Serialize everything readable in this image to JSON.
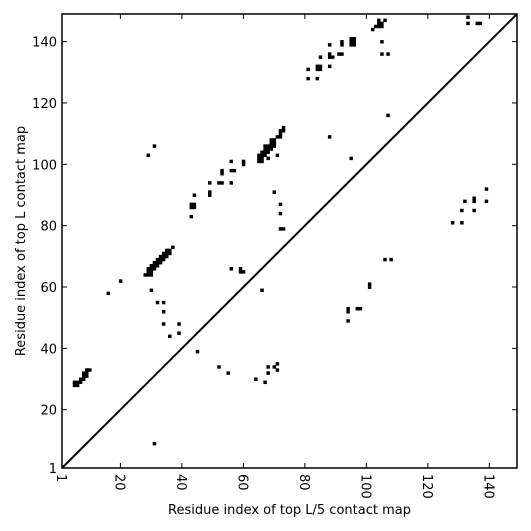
{
  "chart_data": {
    "type": "scatter",
    "title": "",
    "xlabel": "Residue index of top L/5 contact map",
    "ylabel": "Residue index of top L contact map",
    "xlim": [
      1,
      149
    ],
    "ylim": [
      1,
      149
    ],
    "xticks": [
      "1",
      "20",
      "40",
      "60",
      "80",
      "100",
      "120",
      "140"
    ],
    "xtick_values": [
      1,
      20,
      40,
      60,
      80,
      100,
      120,
      140
    ],
    "yticks": [
      "1",
      "20",
      "40",
      "60",
      "80",
      "100",
      "120",
      "140"
    ],
    "ytick_values": [
      1,
      20,
      40,
      60,
      80,
      100,
      120,
      140
    ],
    "grid": false,
    "diagonal_line": true,
    "marker_color": "#000000",
    "series": [
      {
        "values_xy": [
          [
            5,
            28
          ],
          [
            6,
            28
          ],
          [
            5,
            29
          ],
          [
            6,
            29
          ],
          [
            7,
            29
          ],
          [
            7,
            30
          ],
          [
            8,
            30
          ],
          [
            8,
            31
          ],
          [
            9,
            31
          ],
          [
            8,
            32
          ],
          [
            9,
            32
          ],
          [
            9,
            33
          ],
          [
            10,
            33
          ],
          [
            16,
            58
          ],
          [
            20,
            62
          ],
          [
            29,
            103
          ],
          [
            31,
            106
          ],
          [
            31,
            9
          ],
          [
            28,
            64
          ],
          [
            29,
            64
          ],
          [
            30,
            64
          ],
          [
            29,
            65
          ],
          [
            30,
            65
          ],
          [
            29,
            66
          ],
          [
            30,
            66
          ],
          [
            31,
            66
          ],
          [
            30,
            67
          ],
          [
            31,
            67
          ],
          [
            32,
            67
          ],
          [
            31,
            68
          ],
          [
            32,
            68
          ],
          [
            33,
            68
          ],
          [
            32,
            69
          ],
          [
            33,
            69
          ],
          [
            34,
            69
          ],
          [
            33,
            70
          ],
          [
            34,
            70
          ],
          [
            35,
            70
          ],
          [
            34,
            71
          ],
          [
            35,
            71
          ],
          [
            36,
            71
          ],
          [
            35,
            72
          ],
          [
            36,
            72
          ],
          [
            37,
            73
          ],
          [
            30,
            59
          ],
          [
            32,
            55
          ],
          [
            34,
            55
          ],
          [
            34,
            52
          ],
          [
            34,
            48
          ],
          [
            36,
            44
          ],
          [
            39,
            48
          ],
          [
            39,
            45
          ],
          [
            45,
            39
          ],
          [
            43,
            83
          ],
          [
            43,
            86
          ],
          [
            44,
            86
          ],
          [
            43,
            87
          ],
          [
            44,
            87
          ],
          [
            44,
            90
          ],
          [
            49,
            90
          ],
          [
            49,
            91
          ],
          [
            49,
            94
          ],
          [
            52,
            94
          ],
          [
            53,
            94
          ],
          [
            53,
            97
          ],
          [
            53,
            98
          ],
          [
            56,
            94
          ],
          [
            56,
            98
          ],
          [
            57,
            98
          ],
          [
            56,
            101
          ],
          [
            60,
            100
          ],
          [
            60,
            101
          ],
          [
            59,
            65
          ],
          [
            60,
            65
          ],
          [
            59,
            66
          ],
          [
            56,
            66
          ],
          [
            52,
            34
          ],
          [
            55,
            32
          ],
          [
            65,
            101
          ],
          [
            66,
            101
          ],
          [
            65,
            102
          ],
          [
            66,
            102
          ],
          [
            65,
            103
          ],
          [
            66,
            103
          ],
          [
            67,
            103
          ],
          [
            66,
            104
          ],
          [
            67,
            104
          ],
          [
            68,
            104
          ],
          [
            67,
            105
          ],
          [
            68,
            105
          ],
          [
            69,
            105
          ],
          [
            67,
            106
          ],
          [
            68,
            106
          ],
          [
            69,
            106
          ],
          [
            70,
            106
          ],
          [
            69,
            107
          ],
          [
            70,
            107
          ],
          [
            69,
            108
          ],
          [
            70,
            108
          ],
          [
            71,
            109
          ],
          [
            72,
            110
          ],
          [
            72,
            111
          ],
          [
            73,
            111
          ],
          [
            73,
            112
          ],
          [
            72,
            109
          ],
          [
            68,
            102
          ],
          [
            71,
            103
          ],
          [
            70,
            91
          ],
          [
            72,
            87
          ],
          [
            72,
            84
          ],
          [
            72,
            79
          ],
          [
            73,
            79
          ],
          [
            66,
            59
          ],
          [
            64,
            30
          ],
          [
            67,
            29
          ],
          [
            68,
            32
          ],
          [
            68,
            34
          ],
          [
            70,
            34
          ],
          [
            71,
            33
          ],
          [
            71,
            35
          ],
          [
            81,
            128
          ],
          [
            84,
            128
          ],
          [
            81,
            131
          ],
          [
            84,
            131
          ],
          [
            85,
            131
          ],
          [
            84,
            132
          ],
          [
            85,
            132
          ],
          [
            85,
            135
          ],
          [
            88,
            132
          ],
          [
            88,
            135
          ],
          [
            89,
            135
          ],
          [
            88,
            136
          ],
          [
            91,
            136
          ],
          [
            92,
            136
          ],
          [
            88,
            139
          ],
          [
            92,
            139
          ],
          [
            92,
            140
          ],
          [
            95,
            139
          ],
          [
            96,
            139
          ],
          [
            95,
            140
          ],
          [
            96,
            140
          ],
          [
            95,
            141
          ],
          [
            96,
            141
          ],
          [
            88,
            109
          ],
          [
            95,
            102
          ],
          [
            94,
            49
          ],
          [
            94,
            52
          ],
          [
            94,
            53
          ],
          [
            97,
            53
          ],
          [
            98,
            53
          ],
          [
            101,
            60
          ],
          [
            101,
            61
          ],
          [
            102,
            144
          ],
          [
            103,
            145
          ],
          [
            104,
            145
          ],
          [
            105,
            145
          ],
          [
            104,
            146
          ],
          [
            105,
            146
          ],
          [
            104,
            147
          ],
          [
            106,
            147
          ],
          [
            105,
            140
          ],
          [
            105,
            136
          ],
          [
            107,
            136
          ],
          [
            107,
            116
          ],
          [
            106,
            69
          ],
          [
            108,
            69
          ],
          [
            128,
            81
          ],
          [
            131,
            81
          ],
          [
            131,
            85
          ],
          [
            132,
            88
          ],
          [
            135,
            85
          ],
          [
            135,
            88
          ],
          [
            135,
            89
          ],
          [
            136,
            146
          ],
          [
            137,
            146
          ],
          [
            133,
            146
          ],
          [
            133,
            148
          ],
          [
            139,
            88
          ],
          [
            139,
            92
          ]
        ]
      }
    ]
  }
}
